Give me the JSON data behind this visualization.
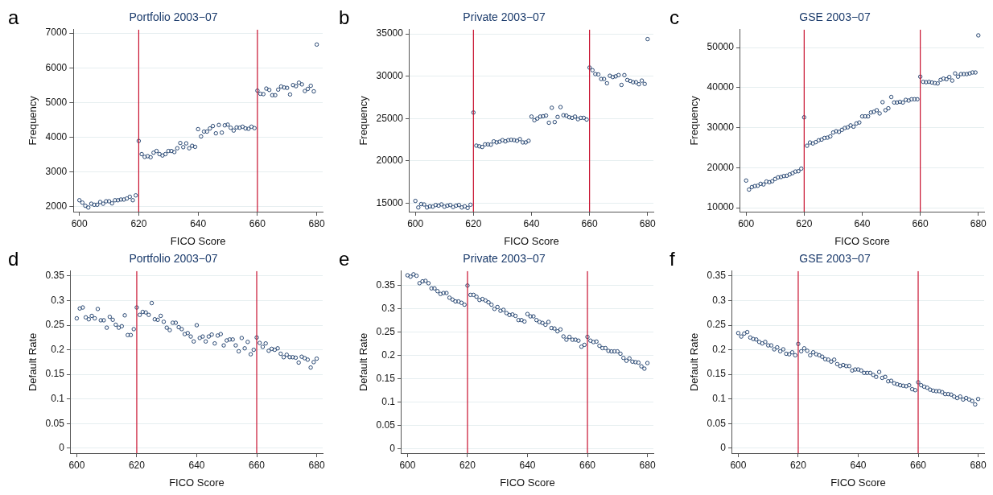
{
  "chart_data": [
    {
      "type": "scatter",
      "title": "Portfolio 2003−07",
      "xlabel": "FICO Score",
      "ylabel": "Frequency",
      "annotations": [
        "a"
      ],
      "marker": "circle",
      "grid": "y",
      "xlim": [
        598,
        682
      ],
      "xticks": [
        600,
        620,
        640,
        660,
        680
      ],
      "ylim": [
        1850,
        7100
      ],
      "yticks": [
        2000,
        3000,
        4000,
        5000,
        6000,
        7000
      ],
      "ref_lines": [
        {
          "axis": "x",
          "value": 620,
          "color": "#c8102e"
        },
        {
          "axis": "x",
          "value": 660,
          "color": "#c8102e"
        }
      ],
      "x": [
        600,
        601,
        602,
        603,
        604,
        605,
        606,
        607,
        608,
        609,
        610,
        611,
        612,
        613,
        614,
        615,
        616,
        617,
        618,
        619,
        620,
        621,
        622,
        623,
        624,
        625,
        626,
        627,
        628,
        629,
        630,
        631,
        632,
        633,
        634,
        635,
        636,
        637,
        638,
        639,
        640,
        641,
        642,
        643,
        644,
        645,
        646,
        647,
        648,
        649,
        650,
        651,
        652,
        653,
        654,
        655,
        656,
        657,
        658,
        659,
        660,
        661,
        662,
        663,
        664,
        665,
        666,
        667,
        668,
        669,
        670,
        671,
        672,
        673,
        674,
        675,
        676,
        677,
        678,
        679,
        680
      ],
      "series": [
        {
          "color": "#2b4a75",
          "values": [
            2180,
            2110,
            2020,
            1970,
            2080,
            2050,
            2050,
            2130,
            2080,
            2150,
            2150,
            2090,
            2180,
            2180,
            2200,
            2200,
            2230,
            2280,
            2180,
            2320,
            3890,
            3510,
            3430,
            3450,
            3420,
            3550,
            3600,
            3510,
            3470,
            3510,
            3600,
            3600,
            3570,
            3680,
            3830,
            3710,
            3820,
            3680,
            3750,
            3720,
            4230,
            4020,
            4160,
            4160,
            4250,
            4320,
            4110,
            4350,
            4130,
            4340,
            4360,
            4270,
            4190,
            4280,
            4270,
            4300,
            4250,
            4240,
            4300,
            4260,
            5340,
            5250,
            5240,
            5400,
            5360,
            5210,
            5210,
            5370,
            5460,
            5430,
            5420,
            5230,
            5500,
            5470,
            5570,
            5520,
            5330,
            5390,
            5480,
            5320,
            6670
          ]
        }
      ]
    },
    {
      "type": "scatter",
      "title": "Private 2003−07",
      "xlabel": "FICO Score",
      "ylabel": "Frequency",
      "annotations": [
        "b"
      ],
      "marker": "circle",
      "grid": "y",
      "xlim": [
        598,
        682
      ],
      "xticks": [
        600,
        620,
        640,
        660,
        680
      ],
      "ylim": [
        14000,
        35500
      ],
      "yticks": [
        15000,
        20000,
        25000,
        30000,
        35000
      ],
      "ref_lines": [
        {
          "axis": "x",
          "value": 620,
          "color": "#c8102e"
        },
        {
          "axis": "x",
          "value": 660,
          "color": "#c8102e"
        }
      ],
      "x": [
        600,
        601,
        602,
        603,
        604,
        605,
        606,
        607,
        608,
        609,
        610,
        611,
        612,
        613,
        614,
        615,
        616,
        617,
        618,
        619,
        620,
        621,
        622,
        623,
        624,
        625,
        626,
        627,
        628,
        629,
        630,
        631,
        632,
        633,
        634,
        635,
        636,
        637,
        638,
        639,
        640,
        641,
        642,
        643,
        644,
        645,
        646,
        647,
        648,
        649,
        650,
        651,
        652,
        653,
        654,
        655,
        656,
        657,
        658,
        659,
        660,
        661,
        662,
        663,
        664,
        665,
        666,
        667,
        668,
        669,
        670,
        671,
        672,
        673,
        674,
        675,
        676,
        677,
        678,
        679,
        680
      ],
      "series": [
        {
          "color": "#2b4a75",
          "values": [
            15270,
            14500,
            14900,
            14850,
            14500,
            14630,
            14590,
            14790,
            14710,
            14860,
            14590,
            14710,
            14790,
            14550,
            14710,
            14790,
            14500,
            14630,
            14440,
            14820,
            25710,
            21800,
            21720,
            21640,
            21950,
            21950,
            21910,
            22300,
            22180,
            22260,
            22450,
            22300,
            22450,
            22490,
            22450,
            22370,
            22570,
            22180,
            22180,
            22370,
            25230,
            24800,
            25000,
            25230,
            25270,
            25350,
            24500,
            26270,
            24580,
            25190,
            26350,
            25390,
            25350,
            25150,
            25080,
            25230,
            24920,
            25080,
            25080,
            24880,
            31020,
            30710,
            30250,
            30210,
            29670,
            29670,
            29170,
            30050,
            29900,
            29980,
            30130,
            28970,
            30130,
            29550,
            29440,
            29290,
            29290,
            29050,
            29480,
            29090,
            34380
          ]
        }
      ]
    },
    {
      "type": "scatter",
      "title": "GSE 2003−07",
      "xlabel": "FICO Score",
      "ylabel": "Frequency",
      "annotations": [
        "c"
      ],
      "marker": "circle",
      "grid": "y",
      "xlim": [
        598,
        682
      ],
      "xticks": [
        600,
        620,
        640,
        660,
        680
      ],
      "ylim": [
        9000,
        54500
      ],
      "yticks": [
        10000,
        20000,
        30000,
        40000,
        50000
      ],
      "ref_lines": [
        {
          "axis": "x",
          "value": 620,
          "color": "#c8102e"
        },
        {
          "axis": "x",
          "value": 660,
          "color": "#c8102e"
        }
      ],
      "x": [
        600,
        601,
        602,
        603,
        604,
        605,
        606,
        607,
        608,
        609,
        610,
        611,
        612,
        613,
        614,
        615,
        616,
        617,
        618,
        619,
        620,
        621,
        622,
        623,
        624,
        625,
        626,
        627,
        628,
        629,
        630,
        631,
        632,
        633,
        634,
        635,
        636,
        637,
        638,
        639,
        640,
        641,
        642,
        643,
        644,
        645,
        646,
        647,
        648,
        649,
        650,
        651,
        652,
        653,
        654,
        655,
        656,
        657,
        658,
        659,
        660,
        661,
        662,
        663,
        664,
        665,
        666,
        667,
        668,
        669,
        670,
        671,
        672,
        673,
        674,
        675,
        676,
        677,
        678,
        679,
        680
      ],
      "series": [
        {
          "color": "#2b4a75",
          "values": [
            16780,
            14520,
            15160,
            15400,
            15480,
            15970,
            15810,
            16530,
            16370,
            16610,
            17180,
            17580,
            17660,
            17900,
            17980,
            18310,
            18630,
            19030,
            19110,
            19760,
            32580,
            25480,
            26290,
            26050,
            26370,
            26850,
            27020,
            27420,
            27500,
            27820,
            28790,
            29110,
            28950,
            29440,
            29920,
            30080,
            30560,
            30240,
            31050,
            31290,
            32820,
            32820,
            32820,
            33790,
            33950,
            34350,
            33550,
            36370,
            34350,
            34840,
            37660,
            36290,
            36290,
            36450,
            36290,
            36940,
            36770,
            37100,
            37100,
            37100,
            42740,
            41450,
            41370,
            41450,
            41290,
            41130,
            41050,
            41940,
            42260,
            42100,
            42660,
            41770,
            43550,
            42740,
            43390,
            43390,
            43390,
            43550,
            43790,
            43790,
            53060
          ]
        }
      ]
    },
    {
      "type": "scatter",
      "title": "Portfolio 2003−07",
      "xlabel": "FICO Score",
      "ylabel": "Default Rate",
      "annotations": [
        "d"
      ],
      "marker": "circle",
      "grid": "y",
      "xlim": [
        598,
        682
      ],
      "xticks": [
        600,
        620,
        640,
        660,
        680
      ],
      "ylim": [
        -0.01,
        0.36
      ],
      "yticks": [
        0,
        0.05,
        0.1,
        0.15,
        0.2,
        0.25,
        0.3,
        0.35
      ],
      "ref_lines": [
        {
          "axis": "x",
          "value": 620,
          "color": "#c8102e"
        },
        {
          "axis": "x",
          "value": 660,
          "color": "#c8102e"
        }
      ],
      "x": [
        600,
        601,
        602,
        603,
        604,
        605,
        606,
        607,
        608,
        609,
        610,
        611,
        612,
        613,
        614,
        615,
        616,
        617,
        618,
        619,
        620,
        621,
        622,
        623,
        624,
        625,
        626,
        627,
        628,
        629,
        630,
        631,
        632,
        633,
        634,
        635,
        636,
        637,
        638,
        639,
        640,
        641,
        642,
        643,
        644,
        645,
        646,
        647,
        648,
        649,
        650,
        651,
        652,
        653,
        654,
        655,
        656,
        657,
        658,
        659,
        660,
        661,
        662,
        663,
        664,
        665,
        666,
        667,
        668,
        669,
        670,
        671,
        672,
        673,
        674,
        675,
        676,
        677,
        678,
        679,
        680
      ],
      "series": [
        {
          "color": "#2b4a75",
          "values": [
            0.264,
            0.284,
            0.286,
            0.266,
            0.262,
            0.269,
            0.264,
            0.283,
            0.26,
            0.26,
            0.245,
            0.267,
            0.261,
            0.251,
            0.245,
            0.248,
            0.27,
            0.23,
            0.23,
            0.242,
            0.286,
            0.271,
            0.277,
            0.276,
            0.271,
            0.295,
            0.262,
            0.261,
            0.269,
            0.257,
            0.245,
            0.24,
            0.255,
            0.255,
            0.246,
            0.242,
            0.232,
            0.234,
            0.227,
            0.217,
            0.25,
            0.224,
            0.227,
            0.217,
            0.227,
            0.231,
            0.213,
            0.229,
            0.232,
            0.209,
            0.219,
            0.221,
            0.221,
            0.209,
            0.197,
            0.224,
            0.203,
            0.216,
            0.191,
            0.2,
            0.225,
            0.214,
            0.206,
            0.213,
            0.198,
            0.202,
            0.2,
            0.203,
            0.192,
            0.185,
            0.19,
            0.185,
            0.185,
            0.184,
            0.174,
            0.186,
            0.183,
            0.18,
            0.164,
            0.175,
            0.182
          ]
        }
      ]
    },
    {
      "type": "scatter",
      "title": "Private 2003−07",
      "xlabel": "FICO Score",
      "ylabel": "Default Rate",
      "annotations": [
        "e"
      ],
      "marker": "circle",
      "grid": "y",
      "xlim": [
        598,
        682
      ],
      "xticks": [
        600,
        620,
        640,
        660,
        680
      ],
      "ylim": [
        -0.01,
        0.38
      ],
      "yticks": [
        0,
        0.05,
        0.1,
        0.15,
        0.2,
        0.25,
        0.3,
        0.35
      ],
      "ref_lines": [
        {
          "axis": "x",
          "value": 620,
          "color": "#c8102e"
        },
        {
          "axis": "x",
          "value": 660,
          "color": "#c8102e"
        }
      ],
      "x": [
        600,
        601,
        602,
        603,
        604,
        605,
        606,
        607,
        608,
        609,
        610,
        611,
        612,
        613,
        614,
        615,
        616,
        617,
        618,
        619,
        620,
        621,
        622,
        623,
        624,
        625,
        626,
        627,
        628,
        629,
        630,
        631,
        632,
        633,
        634,
        635,
        636,
        637,
        638,
        639,
        640,
        641,
        642,
        643,
        644,
        645,
        646,
        647,
        648,
        649,
        650,
        651,
        652,
        653,
        654,
        655,
        656,
        657,
        658,
        659,
        660,
        661,
        662,
        663,
        664,
        665,
        666,
        667,
        668,
        669,
        670,
        671,
        672,
        673,
        674,
        675,
        676,
        677,
        678,
        679,
        680
      ],
      "series": [
        {
          "color": "#2b4a75",
          "values": [
            0.371,
            0.368,
            0.373,
            0.37,
            0.354,
            0.358,
            0.359,
            0.354,
            0.343,
            0.343,
            0.337,
            0.331,
            0.333,
            0.333,
            0.323,
            0.319,
            0.315,
            0.315,
            0.312,
            0.308,
            0.349,
            0.329,
            0.329,
            0.325,
            0.318,
            0.32,
            0.317,
            0.313,
            0.308,
            0.299,
            0.303,
            0.295,
            0.297,
            0.29,
            0.286,
            0.287,
            0.284,
            0.275,
            0.275,
            0.272,
            0.288,
            0.283,
            0.283,
            0.275,
            0.271,
            0.269,
            0.265,
            0.271,
            0.258,
            0.257,
            0.251,
            0.255,
            0.24,
            0.233,
            0.239,
            0.233,
            0.233,
            0.231,
            0.218,
            0.222,
            0.239,
            0.231,
            0.228,
            0.229,
            0.22,
            0.215,
            0.215,
            0.209,
            0.208,
            0.208,
            0.208,
            0.203,
            0.194,
            0.188,
            0.193,
            0.186,
            0.185,
            0.184,
            0.176,
            0.171,
            0.183
          ]
        }
      ]
    },
    {
      "type": "scatter",
      "title": "GSE 2003−07",
      "xlabel": "FICO Score",
      "ylabel": "Default Rate",
      "annotations": [
        "f"
      ],
      "marker": "circle",
      "grid": "y",
      "xlim": [
        598,
        682
      ],
      "xticks": [
        600,
        620,
        640,
        660,
        680
      ],
      "ylim": [
        -0.01,
        0.36
      ],
      "yticks": [
        0,
        0.05,
        0.1,
        0.15,
        0.2,
        0.25,
        0.3,
        0.35
      ],
      "ref_lines": [
        {
          "axis": "x",
          "value": 620,
          "color": "#c8102e"
        },
        {
          "axis": "x",
          "value": 660,
          "color": "#c8102e"
        }
      ],
      "x": [
        600,
        601,
        602,
        603,
        604,
        605,
        606,
        607,
        608,
        609,
        610,
        611,
        612,
        613,
        614,
        615,
        616,
        617,
        618,
        619,
        620,
        621,
        622,
        623,
        624,
        625,
        626,
        627,
        628,
        629,
        630,
        631,
        632,
        633,
        634,
        635,
        636,
        637,
        638,
        639,
        640,
        641,
        642,
        643,
        644,
        645,
        646,
        647,
        648,
        649,
        650,
        651,
        652,
        653,
        654,
        655,
        656,
        657,
        658,
        659,
        660,
        661,
        662,
        663,
        664,
        665,
        666,
        667,
        668,
        669,
        670,
        671,
        672,
        673,
        674,
        675,
        676,
        677,
        678,
        679,
        680
      ],
      "series": [
        {
          "color": "#2b4a75",
          "values": [
            0.234,
            0.227,
            0.233,
            0.236,
            0.225,
            0.222,
            0.221,
            0.216,
            0.213,
            0.216,
            0.209,
            0.209,
            0.201,
            0.205,
            0.197,
            0.201,
            0.192,
            0.191,
            0.195,
            0.189,
            0.212,
            0.197,
            0.203,
            0.198,
            0.189,
            0.195,
            0.191,
            0.189,
            0.186,
            0.181,
            0.18,
            0.176,
            0.18,
            0.171,
            0.167,
            0.169,
            0.167,
            0.167,
            0.158,
            0.16,
            0.16,
            0.158,
            0.153,
            0.153,
            0.153,
            0.149,
            0.145,
            0.155,
            0.143,
            0.145,
            0.136,
            0.137,
            0.132,
            0.13,
            0.128,
            0.127,
            0.126,
            0.128,
            0.12,
            0.118,
            0.134,
            0.128,
            0.125,
            0.123,
            0.119,
            0.117,
            0.116,
            0.116,
            0.114,
            0.11,
            0.11,
            0.109,
            0.105,
            0.102,
            0.105,
            0.099,
            0.102,
            0.099,
            0.096,
            0.089,
            0.1
          ]
        }
      ]
    }
  ]
}
